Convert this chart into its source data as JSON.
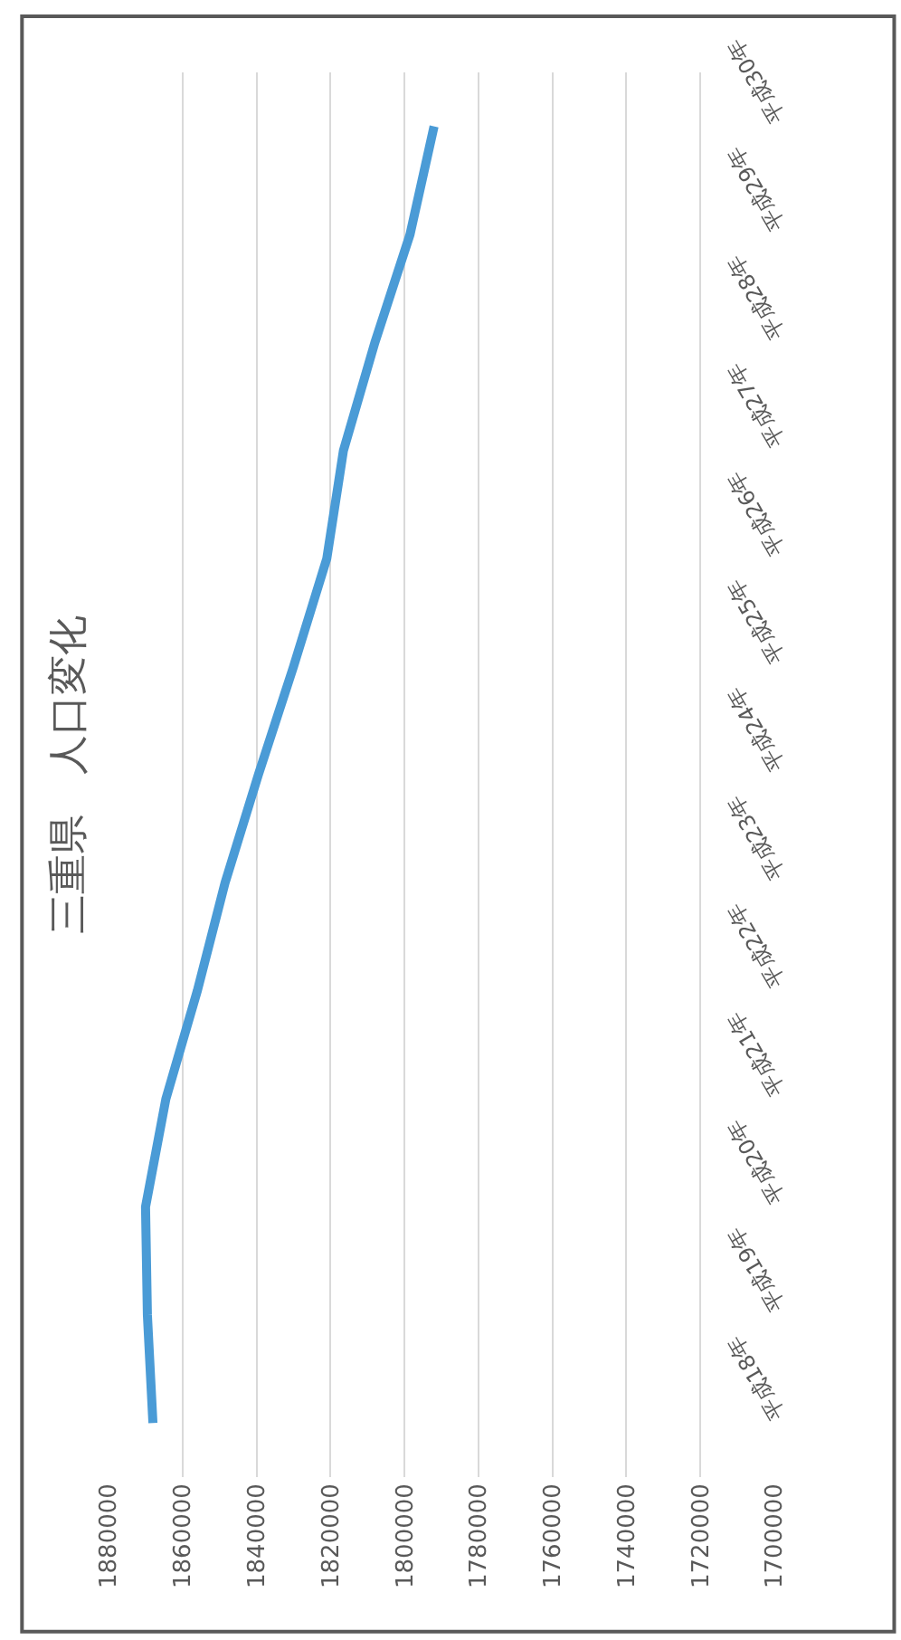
{
  "chart_data": {
    "type": "line",
    "orientation": "horizontal",
    "title": "三重県　人口変化",
    "categories": [
      "平成30年",
      "平成29年",
      "平成28年",
      "平成27年",
      "平成26年",
      "平成25年",
      "平成24年",
      "平成23年",
      "平成22年",
      "平成21年",
      "平成20年",
      "平成19年",
      "平成18年"
    ],
    "series": [
      {
        "color": "#4a9bd6",
        "values": [
          1792000,
          1798500,
          1808000,
          1816500,
          1821000,
          1830000,
          1839500,
          1848500,
          1856000,
          1864500,
          1870000,
          1869500,
          1868000
        ]
      }
    ],
    "xlim": [
      1880000,
      1700000
    ],
    "xticks": [
      1880000,
      1860000,
      1840000,
      1820000,
      1800000,
      1780000,
      1760000,
      1740000,
      1720000,
      1700000
    ],
    "grid": "x",
    "marker": "none",
    "line_style": "solid"
  }
}
